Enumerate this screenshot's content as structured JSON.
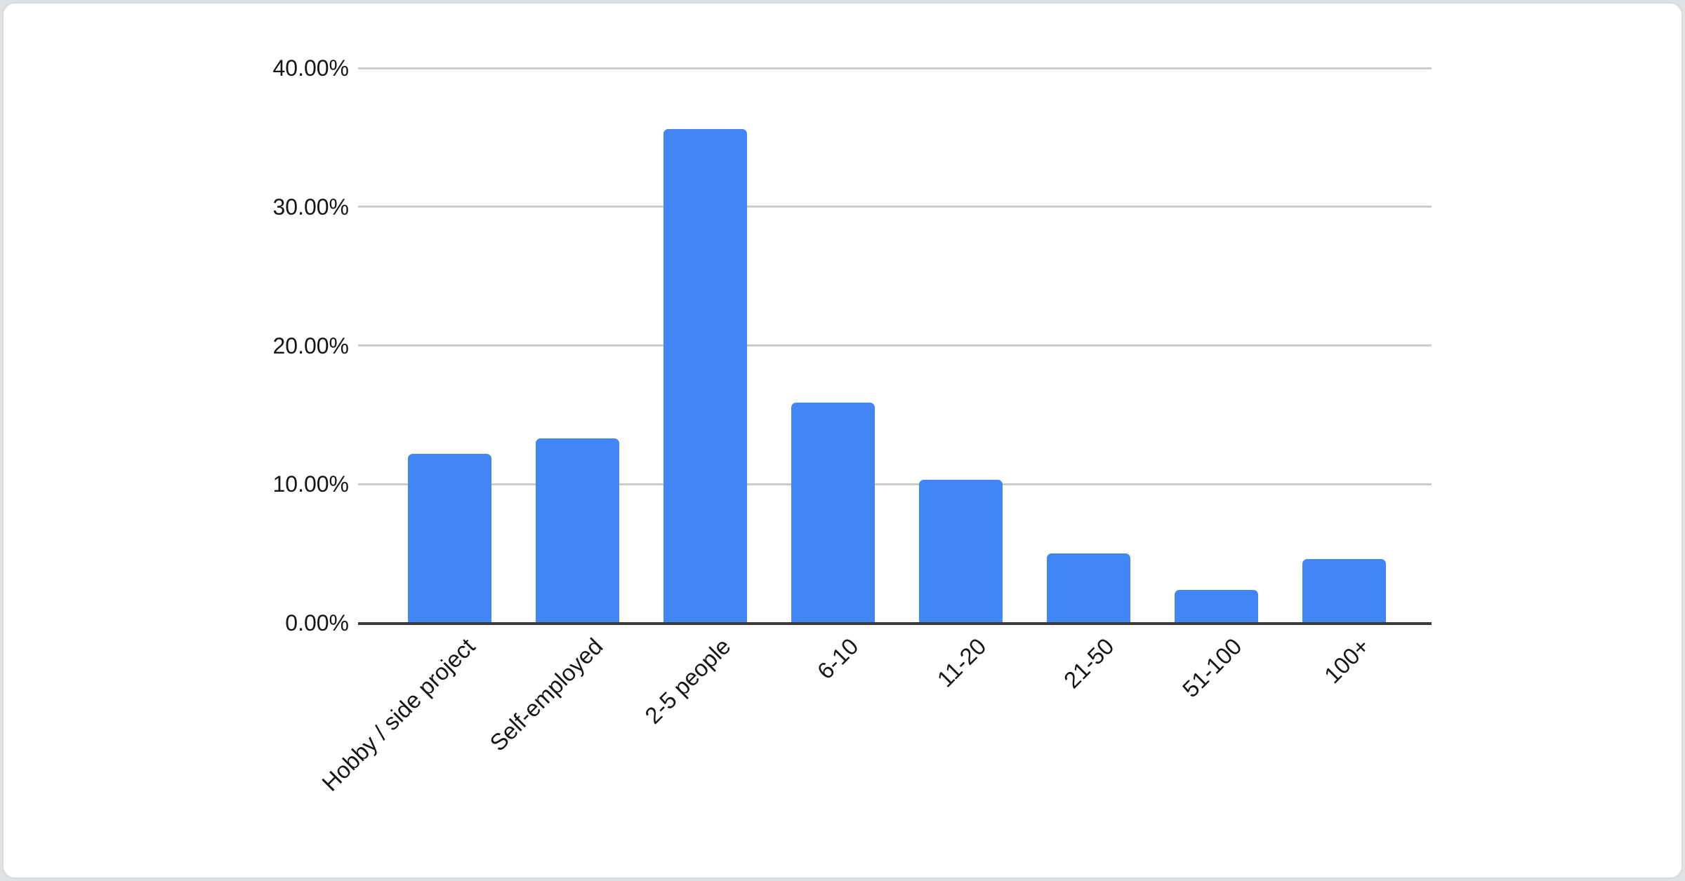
{
  "page": {
    "background_color": "#dfe2e5",
    "card_background": "#ffffff",
    "card_border_color": "#d9dcdf"
  },
  "chart_data": {
    "type": "bar",
    "title": "",
    "categories": [
      "Hobby / side project",
      "Self-employed",
      "2-5 people",
      "6-10",
      "11-20",
      "21-50",
      "51-100",
      "100+"
    ],
    "values": [
      12.2,
      13.3,
      35.6,
      15.9,
      10.3,
      5.0,
      2.4,
      4.6
    ],
    "value_unit": "percent",
    "y_tick_labels": [
      "40.00%",
      "30.00%",
      "20.00%",
      "10.00%",
      "0.00%"
    ],
    "y_tick_values": [
      40,
      30,
      20,
      10,
      0
    ],
    "ylim": [
      0,
      40
    ],
    "xlabel": "",
    "ylabel": "",
    "grid": true,
    "legend_position": "none",
    "x_label_rotation_deg": -45,
    "bar_color": "#4285f4",
    "gridline_color": "#cccccc",
    "axis_line_color": "#3a3a3a",
    "text_color": "#161616"
  }
}
